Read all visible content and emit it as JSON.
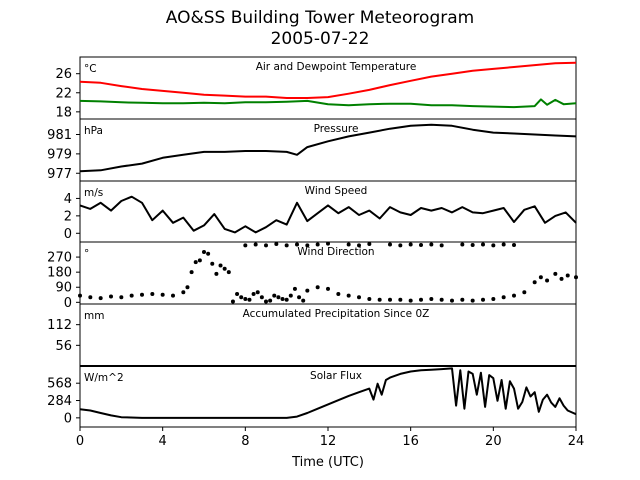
{
  "title": "AO&SS Building Tower Meteorogram",
  "subtitle": "2005-07-22",
  "xlabel": "Time (UTC)",
  "xticks": [
    "0",
    "4",
    "8",
    "12",
    "16",
    "20",
    "24"
  ],
  "chart_data": [
    {
      "type": "line",
      "title": "Air and Dewpoint Temperature",
      "unit": "°C",
      "ylim": [
        16.5,
        29.5
      ],
      "yticks": [
        18,
        22,
        26
      ],
      "series": [
        {
          "color": "#ff0000",
          "x": [
            0,
            1,
            2,
            3,
            4,
            5,
            6,
            7,
            8,
            9,
            10,
            11,
            12,
            13,
            14,
            15,
            16,
            17,
            18,
            19,
            20,
            21,
            22,
            23,
            24
          ],
          "y": [
            24.3,
            24.1,
            23.4,
            22.8,
            22.4,
            22.0,
            21.6,
            21.4,
            21.2,
            21.2,
            20.9,
            20.9,
            21.1,
            21.8,
            22.6,
            23.6,
            24.5,
            25.4,
            26.0,
            26.6,
            27.0,
            27.4,
            27.8,
            28.2,
            28.3
          ]
        },
        {
          "color": "#008000",
          "x": [
            0,
            1,
            2,
            3,
            4,
            5,
            6,
            7,
            8,
            9,
            10,
            11,
            12,
            13,
            14,
            15,
            16,
            17,
            18,
            19,
            20,
            21,
            22,
            22.3,
            22.6,
            23,
            23.4,
            24
          ],
          "y": [
            20.3,
            20.2,
            20.0,
            19.9,
            19.8,
            19.8,
            19.9,
            19.8,
            20.0,
            20.0,
            20.1,
            20.3,
            19.6,
            19.4,
            19.6,
            19.7,
            19.7,
            19.4,
            19.4,
            19.2,
            19.1,
            19.0,
            19.2,
            20.6,
            19.5,
            20.5,
            19.6,
            19.8
          ]
        }
      ]
    },
    {
      "type": "line",
      "title": "Pressure",
      "unit": "hPa",
      "ylim": [
        976.2,
        982.6
      ],
      "yticks": [
        977,
        979,
        981
      ],
      "series": [
        {
          "color": "#000000",
          "x": [
            0,
            1,
            2,
            3,
            4,
            5,
            6,
            7,
            8,
            9,
            10,
            10.5,
            11,
            12,
            13,
            14,
            15,
            16,
            17,
            18,
            19,
            20,
            21,
            22,
            23,
            24
          ],
          "y": [
            977.2,
            977.3,
            977.7,
            978.0,
            978.6,
            978.9,
            979.2,
            979.2,
            979.3,
            979.3,
            979.2,
            978.9,
            979.7,
            980.3,
            980.8,
            981.2,
            981.6,
            981.9,
            982.0,
            981.9,
            981.5,
            981.2,
            981.1,
            981.0,
            980.9,
            980.8
          ]
        }
      ]
    },
    {
      "type": "line",
      "title": "Wind Speed",
      "unit": "m/s",
      "ylim": [
        -1.0,
        6.0
      ],
      "yticks": [
        0,
        2,
        4
      ],
      "series": [
        {
          "color": "#000000",
          "x": [
            0,
            0.5,
            1,
            1.5,
            2,
            2.5,
            3,
            3.5,
            4,
            4.5,
            5,
            5.5,
            6,
            6.5,
            7,
            7.5,
            8,
            8.5,
            9,
            9.5,
            10,
            10.5,
            11,
            11.5,
            12,
            12.5,
            13,
            13.5,
            14,
            14.5,
            15,
            15.5,
            16,
            16.5,
            17,
            17.5,
            18,
            18.5,
            19,
            19.5,
            20,
            20.5,
            21,
            21.5,
            22,
            22.5,
            23,
            23.5,
            24
          ],
          "y": [
            3.2,
            2.8,
            3.5,
            2.6,
            3.7,
            4.2,
            3.5,
            1.5,
            2.6,
            1.2,
            1.8,
            0.3,
            0.9,
            2.2,
            0.5,
            0.1,
            0.8,
            0.1,
            0.7,
            1.5,
            1.0,
            3.5,
            1.4,
            2.3,
            3.2,
            2.3,
            3.0,
            2.1,
            2.6,
            1.7,
            3.0,
            2.4,
            2.1,
            2.9,
            2.6,
            2.9,
            2.4,
            3.0,
            2.4,
            2.3,
            2.6,
            2.9,
            1.3,
            2.7,
            3.1,
            1.2,
            2.0,
            2.4,
            1.2
          ]
        }
      ]
    },
    {
      "type": "scatter",
      "title": "Wind Direction",
      "unit": "°",
      "ylim": [
        -10,
        360
      ],
      "yticks": [
        0,
        90,
        180,
        270
      ],
      "series": [
        {
          "color": "#000000",
          "x": [
            0,
            0.5,
            1,
            1.5,
            2,
            2.5,
            3,
            3.5,
            4,
            4.5,
            5,
            5.2,
            5.4,
            5.6,
            5.8,
            6,
            6.2,
            6.4,
            6.6,
            6.8,
            7,
            7.2,
            7.4,
            7.6,
            7.8,
            8,
            8.2,
            8.4,
            8.6,
            8.8,
            9,
            9.2,
            9.4,
            9.6,
            9.8,
            10,
            10.2,
            10.4,
            10.6,
            10.8,
            11,
            11.5,
            12,
            12.5,
            13,
            13.5,
            14,
            14.5,
            15,
            15.5,
            16,
            16.5,
            17,
            17.5,
            18,
            18.5,
            19,
            19.5,
            20,
            20.5,
            21,
            21.5,
            22,
            22.3,
            22.6,
            23,
            23.3,
            23.6,
            24,
            8.0,
            8.5,
            9.0,
            9.5,
            10.0,
            10.5,
            11.0,
            11.5,
            12.0,
            13.0,
            13.5,
            14.0,
            15.0,
            15.5,
            16.0,
            16.5,
            17.0,
            17.5,
            18.5,
            19.0,
            19.5,
            20.0,
            20.5,
            21.0
          ],
          "y": [
            40,
            30,
            25,
            35,
            30,
            40,
            45,
            50,
            45,
            40,
            60,
            90,
            180,
            240,
            250,
            300,
            290,
            230,
            170,
            220,
            200,
            180,
            5,
            50,
            30,
            20,
            15,
            50,
            60,
            30,
            5,
            10,
            40,
            30,
            20,
            15,
            40,
            80,
            30,
            10,
            70,
            90,
            80,
            50,
            40,
            30,
            20,
            15,
            15,
            15,
            10,
            15,
            20,
            15,
            10,
            15,
            10,
            15,
            20,
            30,
            40,
            60,
            120,
            150,
            130,
            170,
            140,
            160,
            150,
            340,
            345,
            340,
            348,
            340,
            345,
            340,
            345,
            350,
            345,
            340,
            348,
            345,
            340,
            345,
            342,
            345,
            340,
            345,
            342,
            345,
            340,
            345,
            342
          ]
        }
      ]
    },
    {
      "type": "line",
      "title": "Accumulated Precipitation Since 0Z",
      "unit": "mm",
      "ylim": [
        0,
        168
      ],
      "yticks": [
        56,
        112
      ],
      "series": [
        {
          "color": "#000000",
          "x": [
            0,
            24
          ],
          "y": [
            0,
            0
          ]
        }
      ]
    },
    {
      "type": "line",
      "title": "Solar Flux",
      "unit": "W/m^2",
      "ylim": [
        -150,
        850
      ],
      "yticks": [
        0,
        284,
        568
      ],
      "series": [
        {
          "color": "#000000",
          "x": [
            0,
            0.5,
            1,
            1.5,
            2,
            3,
            4,
            5,
            6,
            7,
            8,
            9,
            10,
            10.5,
            11,
            11.5,
            12,
            12.5,
            13,
            13.5,
            14,
            14.2,
            14.4,
            14.6,
            14.8,
            15,
            15.5,
            16,
            16.5,
            17,
            17.5,
            18,
            18.2,
            18.4,
            18.6,
            18.8,
            19,
            19.2,
            19.4,
            19.6,
            19.8,
            20,
            20.2,
            20.4,
            20.6,
            20.8,
            21,
            21.2,
            21.4,
            21.6,
            21.8,
            22,
            22.2,
            22.4,
            22.6,
            22.8,
            23,
            23.2,
            23.4,
            23.6,
            23.8,
            24
          ],
          "y": [
            140,
            120,
            80,
            40,
            10,
            0,
            0,
            0,
            0,
            0,
            0,
            0,
            0,
            20,
            80,
            150,
            220,
            290,
            360,
            420,
            480,
            300,
            560,
            380,
            620,
            660,
            720,
            760,
            780,
            790,
            800,
            810,
            200,
            780,
            150,
            760,
            720,
            380,
            740,
            180,
            700,
            650,
            280,
            620,
            150,
            600,
            480,
            150,
            260,
            500,
            350,
            420,
            100,
            300,
            380,
            250,
            180,
            320,
            200,
            120,
            90,
            60
          ]
        }
      ]
    }
  ]
}
